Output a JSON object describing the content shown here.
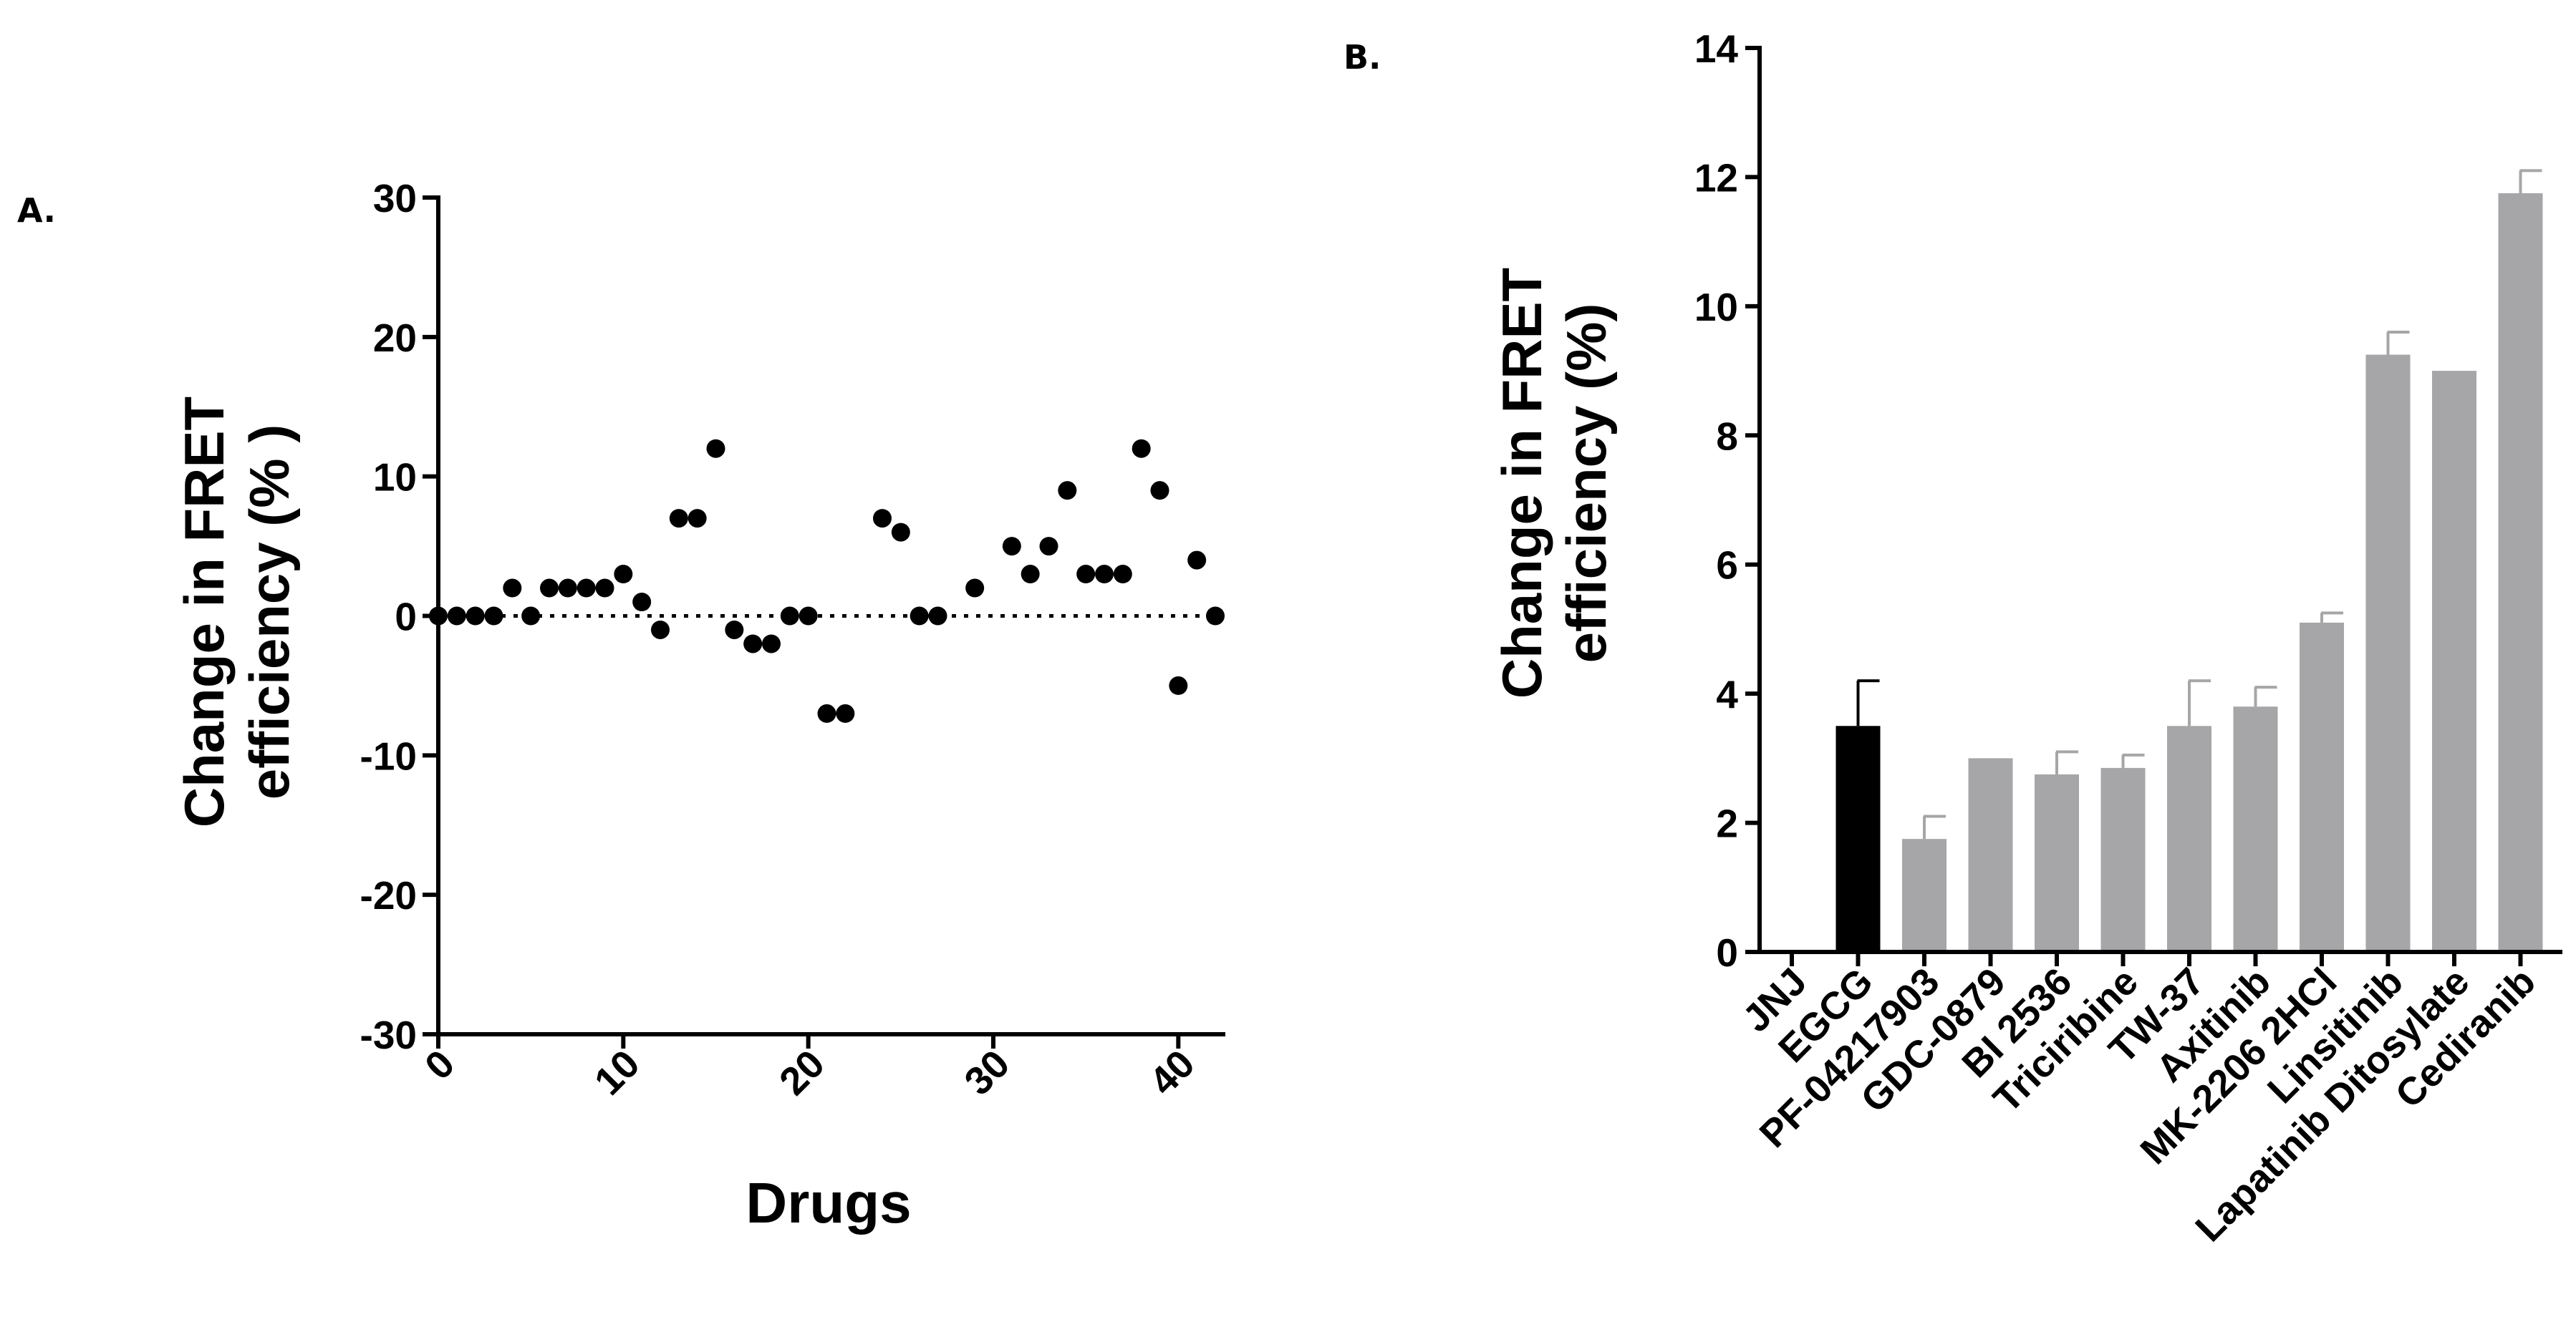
{
  "chart_data": [
    {
      "type": "scatter",
      "panel_label": "A.",
      "title": "",
      "xlabel": "Drugs",
      "ylabel_line1": "Change in FRET",
      "ylabel_line2": "efficiency (% )",
      "xlim": [
        0,
        42
      ],
      "ylim": [
        -30,
        30
      ],
      "xticks": [
        0,
        10,
        20,
        30,
        40
      ],
      "yticks": [
        -30,
        -20,
        -10,
        0,
        10,
        20,
        30
      ],
      "reference_line": 0,
      "marker_color": "#000000",
      "points": [
        [
          0,
          0
        ],
        [
          1,
          0
        ],
        [
          2,
          0
        ],
        [
          3,
          0
        ],
        [
          4,
          2
        ],
        [
          5,
          0
        ],
        [
          6,
          2
        ],
        [
          7,
          2
        ],
        [
          8,
          2
        ],
        [
          9,
          2
        ],
        [
          10,
          3
        ],
        [
          11,
          1
        ],
        [
          12,
          -1
        ],
        [
          13,
          7
        ],
        [
          14,
          7
        ],
        [
          15,
          12
        ],
        [
          16,
          -1
        ],
        [
          17,
          -2
        ],
        [
          18,
          -2
        ],
        [
          19,
          0
        ],
        [
          20,
          0
        ],
        [
          21,
          -7
        ],
        [
          22,
          -7
        ],
        [
          24,
          7
        ],
        [
          25,
          6
        ],
        [
          26,
          0
        ],
        [
          27,
          0
        ],
        [
          29,
          2
        ],
        [
          31,
          5
        ],
        [
          32,
          3
        ],
        [
          33,
          5
        ],
        [
          34,
          9
        ],
        [
          35,
          3
        ],
        [
          36,
          3
        ],
        [
          37,
          3
        ],
        [
          38,
          12
        ],
        [
          39,
          9
        ],
        [
          40,
          -5
        ],
        [
          41,
          4
        ],
        [
          42,
          0
        ]
      ]
    },
    {
      "type": "bar",
      "panel_label": "B.",
      "title": "",
      "xlabel": "",
      "ylabel_line1": "Change in FRET",
      "ylabel_line2": "efficiency (%)",
      "ylim": [
        0,
        14
      ],
      "yticks": [
        0,
        2,
        4,
        6,
        8,
        10,
        12,
        14
      ],
      "categories": [
        "JNJ",
        "EGCG",
        "PF-04217903",
        "GDC-0879",
        "BI 2536",
        "Triciribine",
        "TW-37",
        "Axitinib",
        "MK-2206 2HCl",
        "Linsitinib",
        "Lapatinib Ditosylate",
        "Cediranib"
      ],
      "values": [
        0,
        3.5,
        1.75,
        3.0,
        2.75,
        2.85,
        3.5,
        3.8,
        5.1,
        9.25,
        9.0,
        11.75
      ],
      "errors": [
        0,
        0.7,
        0.35,
        0,
        0.35,
        0.2,
        0.7,
        0.3,
        0.15,
        0.35,
        0,
        0.35
      ],
      "bar_colors": [
        "#000000",
        "#000000",
        "#a6a6a8",
        "#a6a6a8",
        "#a6a6a8",
        "#a6a6a8",
        "#a6a6a8",
        "#a6a6a8",
        "#a6a6a8",
        "#a6a6a8",
        "#a6a6a8",
        "#a6a6a8"
      ]
    }
  ]
}
